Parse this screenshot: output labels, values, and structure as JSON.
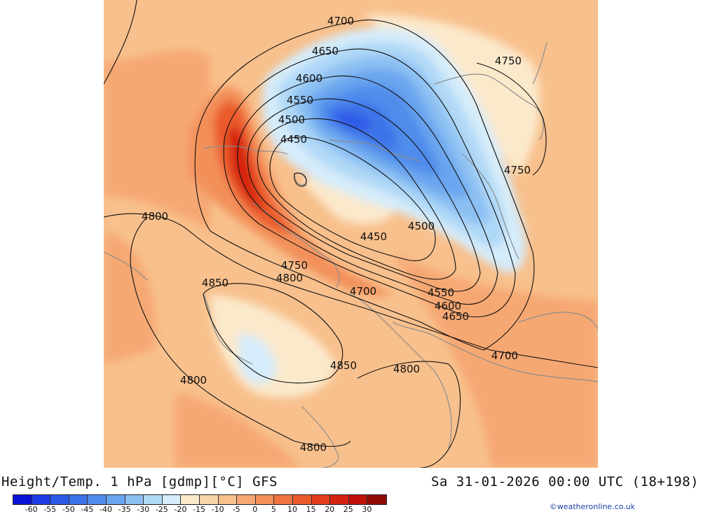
{
  "title": {
    "left": "Height/Temp. 1 hPa [gdmp][°C] GFS",
    "right": "Sa 31-01-2026 00:00 UTC (18+198)"
  },
  "credit": "©weatheronline.co.uk",
  "legend": {
    "colors": [
      "#0a14d8",
      "#1e3ce6",
      "#2d5ae8",
      "#3c73e8",
      "#4f8ceb",
      "#6aa5ef",
      "#8cc0f3",
      "#b0d8f7",
      "#d5ecfa",
      "#fbe9cc",
      "#f9d4a8",
      "#f8c08c",
      "#f6a873",
      "#f3905a",
      "#ef7441",
      "#ea5a2b",
      "#e13e1a",
      "#d42310",
      "#c01008",
      "#8f0a05"
    ],
    "ticks": [
      "-60",
      "-55",
      "-50",
      "-45",
      "-40",
      "-35",
      "-30",
      "-25",
      "-20",
      "-15",
      "-10",
      "-5",
      "0",
      "5",
      "10",
      "15",
      "20",
      "25",
      "30"
    ]
  },
  "contour_labels": [
    {
      "text": "4700"
    },
    {
      "text": "4650"
    },
    {
      "text": "4600"
    },
    {
      "text": "4550"
    },
    {
      "text": "4500"
    },
    {
      "text": "4450"
    },
    {
      "text": "4750"
    },
    {
      "text": "4750"
    },
    {
      "text": "4800"
    },
    {
      "text": "4850"
    },
    {
      "text": "4450"
    },
    {
      "text": "4500"
    },
    {
      "text": "4750"
    },
    {
      "text": "4800"
    },
    {
      "text": "4700"
    },
    {
      "text": "4550"
    },
    {
      "text": "4600"
    },
    {
      "text": "4650"
    },
    {
      "text": "4700"
    },
    {
      "text": "4850"
    },
    {
      "text": "4800"
    },
    {
      "text": "4800"
    },
    {
      "text": "4800"
    }
  ]
}
